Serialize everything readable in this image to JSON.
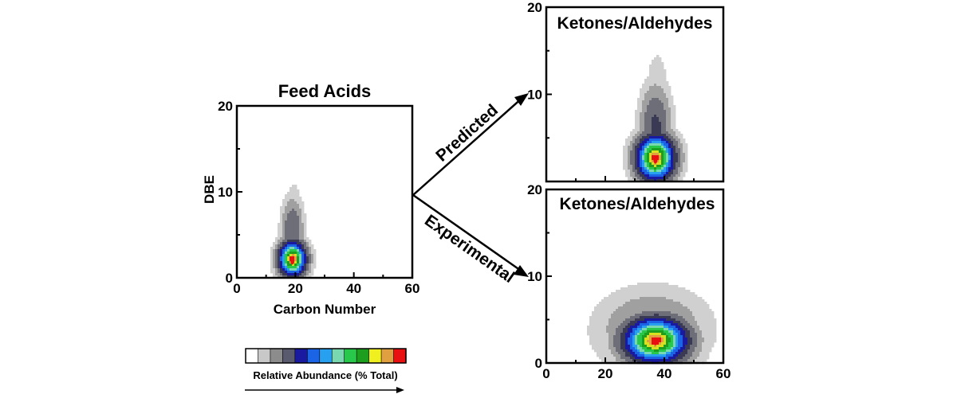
{
  "arrows": {
    "upper_label": "Predicted",
    "lower_label": "Experimental"
  },
  "colorbar": {
    "label": "Relative Abundance (% Total)",
    "colors": [
      "#ffffff",
      "#c8c8c8",
      "#8c8c8c",
      "#5a5a6e",
      "#1a1aa0",
      "#1c64e6",
      "#28a0f0",
      "#7ad8b0",
      "#28c84a",
      "#1e9e1e",
      "#f0f020",
      "#e0a040",
      "#e81010"
    ]
  },
  "chart_data": [
    {
      "type": "heatmap",
      "title": "Feed Acids",
      "xlabel": "Carbon Number",
      "ylabel": "DBE",
      "xlim": [
        0,
        60
      ],
      "ylim": [
        0,
        20
      ],
      "xticks": [
        "0",
        "20",
        "40",
        "60"
      ],
      "yticks": [
        "0",
        "10",
        "20"
      ],
      "peak": {
        "x": 19,
        "y": 2
      },
      "blobs": [
        {
          "x": 19,
          "y": 2.2,
          "sx": 3.0,
          "sy": 1.3,
          "a": 1.0
        },
        {
          "x": 19,
          "y": 5.5,
          "sx": 2.4,
          "sy": 2.4,
          "a": 0.22
        },
        {
          "x": 19.5,
          "y": 8.0,
          "sx": 1.8,
          "sy": 2.0,
          "a": 0.08
        }
      ]
    },
    {
      "type": "heatmap",
      "title": "Ketones/Aldehydes",
      "series": "Predicted",
      "xlabel": "",
      "ylabel": "",
      "xlim": [
        0,
        60
      ],
      "ylim": [
        0,
        20
      ],
      "xticks": [],
      "yticks": [
        "10",
        "20"
      ],
      "peak": {
        "x": 37,
        "y": 2.5
      },
      "blobs": [
        {
          "x": 37,
          "y": 2.7,
          "sx": 4.2,
          "sy": 1.7,
          "a": 1.0
        },
        {
          "x": 37,
          "y": 6.0,
          "sx": 3.4,
          "sy": 3.2,
          "a": 0.25
        },
        {
          "x": 37.5,
          "y": 10.5,
          "sx": 2.5,
          "sy": 3.0,
          "a": 0.07
        }
      ]
    },
    {
      "type": "heatmap",
      "title": "Ketones/Aldehydes",
      "series": "Experimental",
      "xlabel": "",
      "ylabel": "",
      "xlim": [
        0,
        60
      ],
      "ylim": [
        0,
        20
      ],
      "xticks": [
        "0",
        "20",
        "40",
        "60"
      ],
      "yticks": [
        "0",
        "10",
        "20"
      ],
      "peak": {
        "x": 37,
        "y": 2.5
      },
      "blobs": [
        {
          "x": 37,
          "y": 2.6,
          "sx": 7.0,
          "sy": 1.7,
          "a": 1.0
        },
        {
          "x": 36,
          "y": 3.8,
          "sx": 12.0,
          "sy": 3.0,
          "a": 0.16
        },
        {
          "x": 53,
          "y": 3.0,
          "sx": 3.0,
          "sy": 3.0,
          "a": 0.05
        }
      ]
    }
  ]
}
